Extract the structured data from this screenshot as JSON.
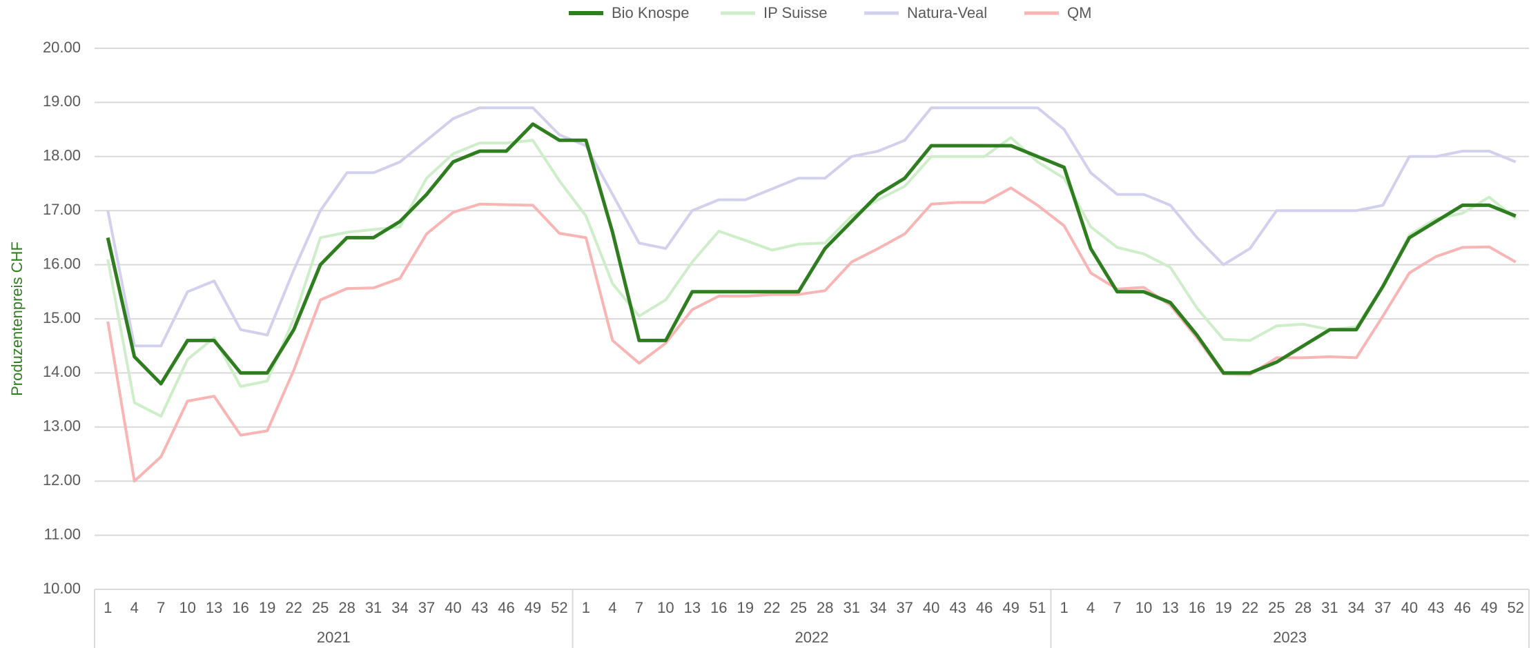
{
  "chart_data": {
    "type": "line",
    "y_label": "Produzentenpreis CHF",
    "categories": [
      {
        "week": "1",
        "year": "2021"
      },
      {
        "week": "4",
        "year": "2021"
      },
      {
        "week": "7",
        "year": "2021"
      },
      {
        "week": "10",
        "year": "2021"
      },
      {
        "week": "13",
        "year": "2021"
      },
      {
        "week": "16",
        "year": "2021"
      },
      {
        "week": "19",
        "year": "2021"
      },
      {
        "week": "22",
        "year": "2021"
      },
      {
        "week": "25",
        "year": "2021"
      },
      {
        "week": "28",
        "year": "2021"
      },
      {
        "week": "31",
        "year": "2021"
      },
      {
        "week": "34",
        "year": "2021"
      },
      {
        "week": "37",
        "year": "2021"
      },
      {
        "week": "40",
        "year": "2021"
      },
      {
        "week": "43",
        "year": "2021"
      },
      {
        "week": "46",
        "year": "2021"
      },
      {
        "week": "49",
        "year": "2021"
      },
      {
        "week": "52",
        "year": "2021"
      },
      {
        "week": "1",
        "year": "2022"
      },
      {
        "week": "4",
        "year": "2022"
      },
      {
        "week": "7",
        "year": "2022"
      },
      {
        "week": "10",
        "year": "2022"
      },
      {
        "week": "13",
        "year": "2022"
      },
      {
        "week": "16",
        "year": "2022"
      },
      {
        "week": "19",
        "year": "2022"
      },
      {
        "week": "22",
        "year": "2022"
      },
      {
        "week": "25",
        "year": "2022"
      },
      {
        "week": "28",
        "year": "2022"
      },
      {
        "week": "31",
        "year": "2022"
      },
      {
        "week": "34",
        "year": "2022"
      },
      {
        "week": "37",
        "year": "2022"
      },
      {
        "week": "40",
        "year": "2022"
      },
      {
        "week": "43",
        "year": "2022"
      },
      {
        "week": "46",
        "year": "2022"
      },
      {
        "week": "49",
        "year": "2022"
      },
      {
        "week": "51",
        "year": "2022"
      },
      {
        "week": "1",
        "year": "2023"
      },
      {
        "week": "4",
        "year": "2023"
      },
      {
        "week": "7",
        "year": "2023"
      },
      {
        "week": "10",
        "year": "2023"
      },
      {
        "week": "13",
        "year": "2023"
      },
      {
        "week": "16",
        "year": "2023"
      },
      {
        "week": "19",
        "year": "2023"
      },
      {
        "week": "22",
        "year": "2023"
      },
      {
        "week": "25",
        "year": "2023"
      },
      {
        "week": "28",
        "year": "2023"
      },
      {
        "week": "31",
        "year": "2023"
      },
      {
        "week": "34",
        "year": "2023"
      },
      {
        "week": "37",
        "year": "2023"
      },
      {
        "week": "40",
        "year": "2023"
      },
      {
        "week": "43",
        "year": "2023"
      },
      {
        "week": "46",
        "year": "2023"
      },
      {
        "week": "49",
        "year": "2023"
      },
      {
        "week": "52",
        "year": "2023"
      }
    ],
    "series": [
      {
        "name": "Bio Knospe",
        "color": "#2e7d1f",
        "width": 5,
        "values": [
          16.5,
          14.3,
          13.8,
          14.6,
          14.6,
          14.0,
          14.0,
          14.8,
          16.0,
          16.5,
          16.5,
          16.8,
          17.3,
          17.9,
          18.1,
          18.1,
          18.6,
          18.3,
          18.3,
          16.6,
          14.6,
          14.6,
          15.5,
          15.5,
          15.5,
          15.5,
          15.5,
          16.3,
          16.8,
          17.3,
          17.6,
          18.2,
          18.2,
          18.2,
          18.2,
          18.0,
          17.8,
          16.3,
          15.5,
          15.5,
          15.3,
          14.7,
          14.0,
          14.0,
          14.2,
          14.5,
          14.8,
          14.8,
          15.6,
          16.5,
          16.8,
          17.1,
          17.1,
          16.9
        ]
      },
      {
        "name": "IP Suisse",
        "color": "#cdeec8",
        "width": 4,
        "values": [
          16.1,
          13.45,
          13.2,
          14.25,
          14.65,
          13.75,
          13.85,
          15.0,
          16.5,
          16.6,
          16.65,
          16.7,
          17.6,
          18.05,
          18.25,
          18.25,
          18.3,
          17.55,
          16.9,
          15.65,
          15.05,
          15.35,
          16.05,
          16.62,
          16.45,
          16.27,
          16.38,
          16.4,
          16.9,
          17.2,
          17.45,
          18.0,
          18.0,
          18.0,
          18.35,
          17.9,
          17.6,
          16.7,
          16.32,
          16.2,
          15.95,
          15.2,
          14.62,
          14.6,
          14.87,
          14.9,
          14.8,
          14.85,
          15.6,
          16.55,
          16.85,
          16.95,
          17.25,
          16.85
        ]
      },
      {
        "name": "Natura-Veal",
        "color": "#d3d0ee",
        "width": 4,
        "values": [
          17.0,
          14.5,
          14.5,
          15.5,
          15.7,
          14.8,
          14.7,
          15.9,
          17.0,
          17.7,
          17.7,
          17.9,
          18.3,
          18.7,
          18.9,
          18.9,
          18.9,
          18.4,
          18.2,
          17.3,
          16.4,
          16.3,
          17.0,
          17.2,
          17.2,
          17.4,
          17.6,
          17.6,
          18.0,
          18.1,
          18.3,
          18.9,
          18.9,
          18.9,
          18.9,
          18.9,
          18.5,
          17.7,
          17.3,
          17.3,
          17.1,
          16.5,
          16.0,
          16.3,
          17.0,
          17.0,
          17.0,
          17.0,
          17.1,
          18.0,
          18.0,
          18.1,
          18.1,
          17.9
        ]
      },
      {
        "name": "QM",
        "color": "#f9b4b4",
        "width": 4,
        "values": [
          14.95,
          12.0,
          12.45,
          13.48,
          13.57,
          12.85,
          12.93,
          14.05,
          15.35,
          15.56,
          15.57,
          15.75,
          16.57,
          16.97,
          17.12,
          17.11,
          17.1,
          16.58,
          16.5,
          14.6,
          14.18,
          14.55,
          15.17,
          15.42,
          15.42,
          15.45,
          15.45,
          15.52,
          16.05,
          16.3,
          16.57,
          17.12,
          17.15,
          17.15,
          17.42,
          17.1,
          16.72,
          15.85,
          15.55,
          15.58,
          15.25,
          14.65,
          13.98,
          13.97,
          14.28,
          14.28,
          14.3,
          14.28,
          15.05,
          15.85,
          16.15,
          16.32,
          16.33,
          16.05
        ]
      }
    ],
    "ylim": [
      10,
      20
    ],
    "yticks": [
      {
        "value": 10,
        "label": "10.00"
      },
      {
        "value": 11,
        "label": "11.00"
      },
      {
        "value": 12,
        "label": "12.00"
      },
      {
        "value": 13,
        "label": "13.00"
      },
      {
        "value": 14,
        "label": "14.00"
      },
      {
        "value": 15,
        "label": "15.00"
      },
      {
        "value": 16,
        "label": "16.00"
      },
      {
        "value": 17,
        "label": "17.00"
      },
      {
        "value": 18,
        "label": "18.00"
      },
      {
        "value": 19,
        "label": "19.00"
      },
      {
        "value": 20,
        "label": "20.00"
      }
    ],
    "grid": true,
    "legend": "top"
  }
}
